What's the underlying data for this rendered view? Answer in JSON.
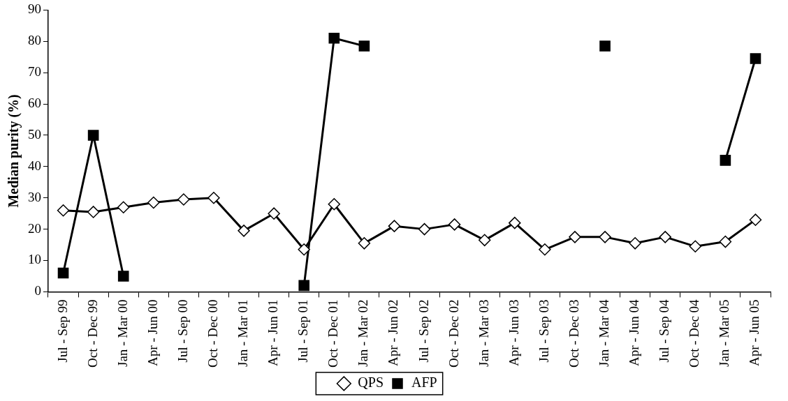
{
  "chart_data": {
    "type": "line",
    "ylabel": "Median purity (%)",
    "categories": [
      "Jul - Sep 99",
      "Oct - Dec 99",
      "Jan - Mar 00",
      "Apr - Jun 00",
      "Jul - Sep 00",
      "Oct - Dec 00",
      "Jan - Mar 01",
      "Apr - Jun 01",
      "Jul - Sep 01",
      "Oct - Dec 01",
      "Jan - Mar 02",
      "Apr - Jun 02",
      "Jul - Sep 02",
      "Oct - Dec 02",
      "Jan - Mar 03",
      "Apr - Jun 03",
      "Jul - Sep 03",
      "Oct - Dec 03",
      "Jan - Mar 04",
      "Apr - Jun 04",
      "Jul - Sep 04",
      "Oct - Dec 04",
      "Jan - Mar 05",
      "Apr - Jun 05"
    ],
    "series": [
      {
        "name": "QPS",
        "color": "#000000",
        "marker": "diamond",
        "values": [
          26,
          25.5,
          27,
          28.5,
          29.5,
          30,
          19.5,
          25,
          13.5,
          28,
          15.5,
          21,
          20,
          21.5,
          16.5,
          22,
          13.5,
          17.5,
          17.5,
          15.5,
          17.5,
          14.5,
          16,
          23
        ]
      },
      {
        "name": "AFP",
        "color": "#000000",
        "marker": "square",
        "values": [
          6,
          50,
          5,
          null,
          null,
          null,
          null,
          null,
          2,
          81,
          78.5,
          null,
          null,
          null,
          null,
          null,
          null,
          null,
          78.5,
          null,
          null,
          null,
          42,
          74.5
        ]
      }
    ],
    "ylim": [
      0,
      90
    ],
    "yticks": [
      0,
      10,
      20,
      30,
      40,
      50,
      60,
      70,
      80,
      90
    ],
    "grid": false,
    "legend": "bottom",
    "line_style": "solid"
  }
}
